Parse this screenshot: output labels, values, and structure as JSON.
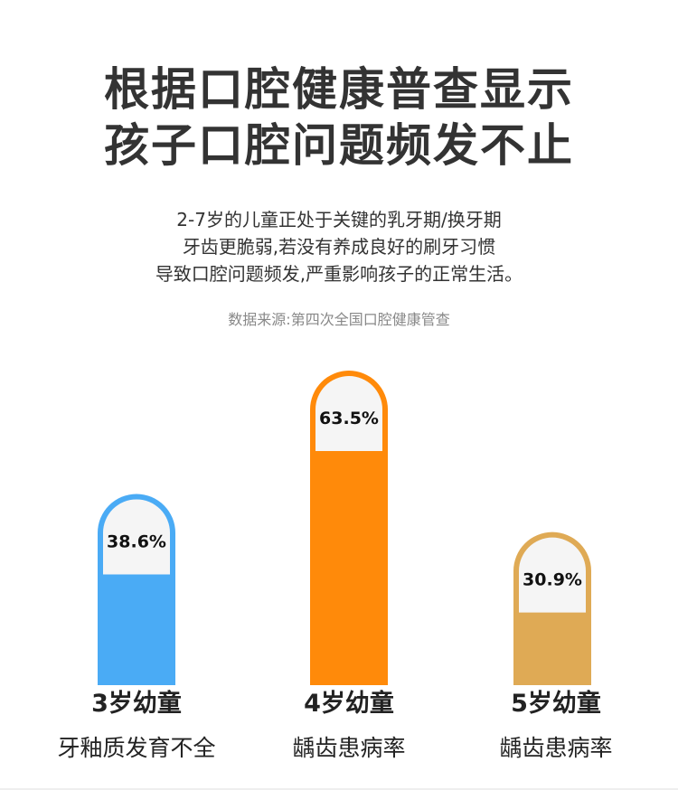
{
  "header": {
    "title_line1": "根据口腔健康普查显示",
    "title_line2": "孩子口腔问题频发不止",
    "subtitle_line1": "2-7岁的儿童正处于关键的乳牙期/换牙期",
    "subtitle_line2": "牙齿更脆弱,若没有养成良好的刷牙习惯",
    "subtitle_line3": "导致口腔问题频发,严重影响孩子的正常生活。",
    "source": "数据来源:第四次全国口腔健康管查"
  },
  "chart_data": {
    "type": "bar",
    "categories": [
      "3岁幼童",
      "4岁幼童",
      "5岁幼童"
    ],
    "descriptions": [
      "牙釉质发育不全",
      "龋齿患病率",
      "龋齿患病率"
    ],
    "values": [
      38.6,
      63.5,
      30.9
    ],
    "value_labels": [
      "38.6%",
      "63.5%",
      "30.9%"
    ],
    "colors": [
      "#4aabf5",
      "#ff8a0a",
      "#dfaa55"
    ],
    "ylim": [
      0,
      100
    ]
  }
}
